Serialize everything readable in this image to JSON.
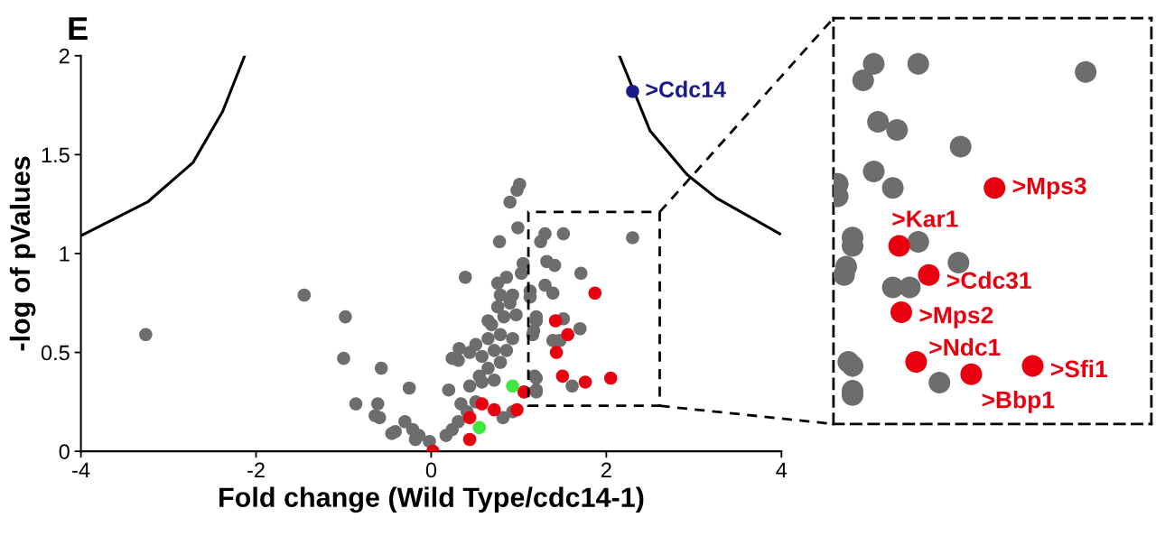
{
  "chart_data": {
    "type": "scatter",
    "title": "E",
    "xlabel": "Fold change (Wild Type/cdc14-1)",
    "ylabel": "-log of pValues",
    "xlim": [
      -4,
      4
    ],
    "ylim": [
      0,
      2
    ],
    "xticks": [
      -4,
      -2,
      0,
      2,
      4
    ],
    "yticks": [
      0,
      0.5,
      1,
      1.5,
      2
    ],
    "marker": "circle",
    "annotations": [
      {
        "text": ">Cdc14",
        "x": 2.3,
        "y": 1.82
      },
      ">Mps3",
      ">Kar1",
      ">Cdc31",
      ">Mps2",
      ">Ndc1",
      ">Bbp1",
      ">Sfi1"
    ],
    "series": [
      {
        "color": "#6d6d6d",
        "x": [
          1.01,
          0.98,
          0.9,
          0.99,
          0.78,
          0.39,
          -1.45,
          -0.98,
          -1.0,
          -0.57,
          -0.25,
          -0.86,
          -0.61,
          -0.64,
          -0.59,
          -0.3,
          -0.41,
          -0.18,
          -0.02,
          0.2,
          0.32,
          0.44,
          0.31,
          -3.26,
          -0.45,
          -0.21,
          -0.14,
          0.17,
          0.24,
          0.31,
          0.41,
          0.34,
          0.51,
          0.44,
          0.58,
          0.72,
          0.55,
          0.65,
          0.79,
          0.58,
          0.72,
          0.86,
          0.65,
          0.79,
          0.93,
          0.69,
          0.83,
          0.97,
          0.76,
          0.9,
          0.79,
          0.93,
          0.76,
          0.86,
          1.03,
          0.65,
          0.51,
          0.24,
          0.82,
          0.93,
          1.2,
          1.2,
          1.16,
          1.2,
          1.13,
          1.3,
          1.51,
          1.25,
          2.3,
          1.05,
          1.32,
          1.41,
          1.71,
          1.3,
          1.39,
          1.13,
          1.51,
          1.7,
          1.39,
          1.47,
          1.2,
          1.17,
          1.18,
          1.61,
          1.2
        ],
        "values": [
          1.35,
          1.32,
          1.26,
          1.13,
          1.06,
          0.88,
          0.79,
          0.68,
          0.47,
          0.42,
          0.32,
          0.24,
          0.24,
          0.18,
          0.17,
          0.15,
          0.1,
          0.06,
          0.05,
          0.31,
          0.52,
          0.5,
          0.46,
          0.59,
          0.09,
          0.11,
          0.08,
          0.08,
          0.11,
          0.15,
          0.2,
          0.24,
          0.25,
          0.33,
          0.35,
          0.36,
          0.38,
          0.42,
          0.45,
          0.48,
          0.51,
          0.51,
          0.57,
          0.59,
          0.57,
          0.64,
          0.68,
          0.69,
          0.73,
          0.75,
          0.79,
          0.79,
          0.85,
          0.88,
          0.9,
          0.66,
          0.54,
          0.47,
          0.17,
          0.2,
          0.31,
          0.37,
          0.59,
          0.66,
          0.78,
          1.1,
          1.1,
          1.06,
          1.08,
          0.95,
          0.96,
          0.94,
          0.9,
          0.84,
          0.8,
          0.81,
          0.67,
          0.62,
          0.56,
          0.56,
          0.68,
          0.61,
          0.38,
          0.33,
          0.3
        ]
      },
      {
        "color": "#e8000f",
        "x": [
          0.02,
          0.44,
          0.44,
          0.58,
          0.72,
          0.98,
          1.06,
          1.87,
          1.42,
          1.56,
          1.43,
          1.5,
          1.76,
          2.05
        ],
        "values": [
          0.0,
          0.06,
          0.17,
          0.24,
          0.21,
          0.21,
          0.3,
          0.8,
          0.66,
          0.59,
          0.5,
          0.38,
          0.35,
          0.37
        ]
      },
      {
        "color": "#3ee83e",
        "x": [
          0.93,
          0.55
        ],
        "values": [
          0.33,
          0.12
        ]
      },
      {
        "color": "#1a1a8c",
        "x": [
          2.3
        ],
        "values": [
          1.82
        ]
      },
      {
        "type": "line",
        "color": "#000000",
        "marker": "none",
        "x": [
          -4,
          -3.24,
          -2.72,
          -2.38,
          -2.13
        ],
        "values": [
          1.09,
          1.26,
          1.46,
          1.72,
          2.0
        ]
      },
      {
        "type": "line",
        "color": "#000000",
        "marker": "none",
        "x": [
          2.15,
          2.5,
          2.92,
          3.26,
          3.98
        ],
        "values": [
          2.0,
          1.62,
          1.4,
          1.28,
          1.1
        ]
      }
    ]
  }
}
